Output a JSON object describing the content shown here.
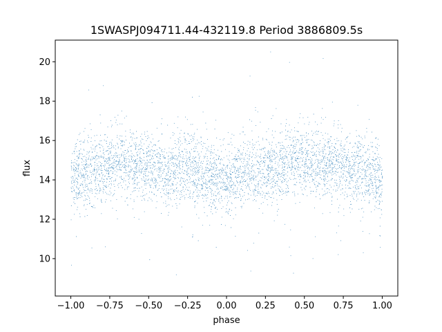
{
  "chart_data": {
    "type": "scatter",
    "title": "1SWASPJ094711.44-432119.8 Period 3886809.5s",
    "xlabel": "phase",
    "ylabel": "flux",
    "xlim": [
      -1.1,
      1.1
    ],
    "ylim": [
      8.1,
      21.1
    ],
    "grid": false,
    "legend": "none",
    "marker_color": "#1f77b4",
    "xticks": [
      {
        "value": -1.0,
        "label": "−1.00"
      },
      {
        "value": -0.75,
        "label": "−0.75"
      },
      {
        "value": -0.5,
        "label": "−0.50"
      },
      {
        "value": -0.25,
        "label": "−0.25"
      },
      {
        "value": 0.0,
        "label": "0.00"
      },
      {
        "value": 0.25,
        "label": "0.25"
      },
      {
        "value": 0.5,
        "label": "0.50"
      },
      {
        "value": 0.75,
        "label": "0.75"
      },
      {
        "value": 1.0,
        "label": "1.00"
      }
    ],
    "yticks": [
      {
        "value": 10,
        "label": "10"
      },
      {
        "value": 12,
        "label": "12"
      },
      {
        "value": 14,
        "label": "14"
      },
      {
        "value": 16,
        "label": "16"
      },
      {
        "value": 18,
        "label": "18"
      },
      {
        "value": 20,
        "label": "20"
      }
    ],
    "series": [
      {
        "x_range": [
          -1.0,
          1.0
        ],
        "y_median": 14.4,
        "y_typical_band": [
          12.8,
          16.2
        ],
        "y_extent": [
          8.7,
          20.5
        ],
        "approx_point_count": 30000,
        "profile_phase": [
          -1.0,
          -0.85,
          -0.7,
          -0.55,
          -0.4,
          -0.25,
          -0.1,
          0.0,
          0.15,
          0.3,
          0.45,
          0.6,
          0.75,
          0.9,
          1.0
        ],
        "profile_flux": [
          14.1,
          14.5,
          14.9,
          14.8,
          14.5,
          14.5,
          14.1,
          14.1,
          14.4,
          14.7,
          15.0,
          14.8,
          14.6,
          14.3,
          14.0
        ]
      }
    ]
  }
}
